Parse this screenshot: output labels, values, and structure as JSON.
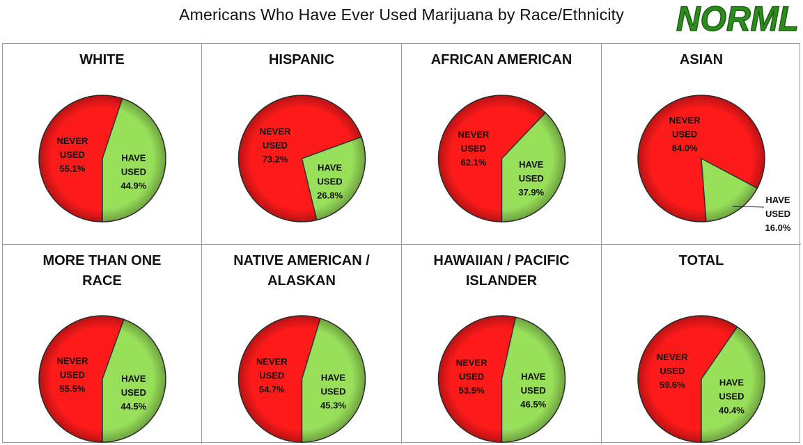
{
  "title": "Americans Who Have Ever Used Marijuana by Race/Ethnicity",
  "logo_text": "NORML",
  "colors": {
    "never_used": "#ff1a1a",
    "have_used": "#99e05a",
    "logo": "#2e8b1e"
  },
  "chart_data": [
    {
      "type": "pie",
      "title": "WHITE",
      "slices": [
        {
          "line1": "NEVER",
          "line2": "USED",
          "label": "55.1%",
          "value": 55.1
        },
        {
          "line1": "HAVE",
          "line2": "USED",
          "label": "44.9%",
          "value": 44.9
        }
      ]
    },
    {
      "type": "pie",
      "title": "HISPANIC",
      "slices": [
        {
          "line1": "NEVER",
          "line2": "USED",
          "label": "73.2%",
          "value": 73.2
        },
        {
          "line1": "HAVE",
          "line2": "USED",
          "label": "26.8%",
          "value": 26.8
        }
      ]
    },
    {
      "type": "pie",
      "title": "AFRICAN AMERICAN",
      "slices": [
        {
          "line1": "NEVER",
          "line2": "USED",
          "label": "62.1%",
          "value": 62.1
        },
        {
          "line1": "HAVE",
          "line2": "USED",
          "label": "37.9%",
          "value": 37.9
        }
      ]
    },
    {
      "type": "pie",
      "title": "ASIAN",
      "slices": [
        {
          "line1": "NEVER",
          "line2": "USED",
          "label": "84.0%",
          "value": 84.0
        },
        {
          "line1": "HAVE",
          "line2": "USED",
          "label": "16.0%",
          "value": 16.0
        }
      ]
    },
    {
      "type": "pie",
      "title": "MORE THAN ONE RACE",
      "slices": [
        {
          "line1": "NEVER",
          "line2": "USED",
          "label": "55.5%",
          "value": 55.5
        },
        {
          "line1": "HAVE",
          "line2": "USED",
          "label": "44.5%",
          "value": 44.5
        }
      ]
    },
    {
      "type": "pie",
      "title": "NATIVE AMERICAN / ALASKAN",
      "slices": [
        {
          "line1": "NEVER",
          "line2": "USED",
          "label": "54.7%",
          "value": 54.7
        },
        {
          "line1": "HAVE",
          "line2": "USED",
          "label": "45.3%",
          "value": 45.3
        }
      ]
    },
    {
      "type": "pie",
      "title": "HAWAIIAN / PACIFIC ISLANDER",
      "slices": [
        {
          "line1": "NEVER",
          "line2": "USED",
          "label": "53.5%",
          "value": 53.5
        },
        {
          "line1": "HAVE",
          "line2": "USED",
          "label": "46.5%",
          "value": 46.5
        }
      ]
    },
    {
      "type": "pie",
      "title": "TOTAL",
      "slices": [
        {
          "line1": "NEVER",
          "line2": "USED",
          "label": "59.6%",
          "value": 59.6
        },
        {
          "line1": "HAVE",
          "line2": "USED",
          "label": "40.4%",
          "value": 40.4
        }
      ]
    }
  ]
}
